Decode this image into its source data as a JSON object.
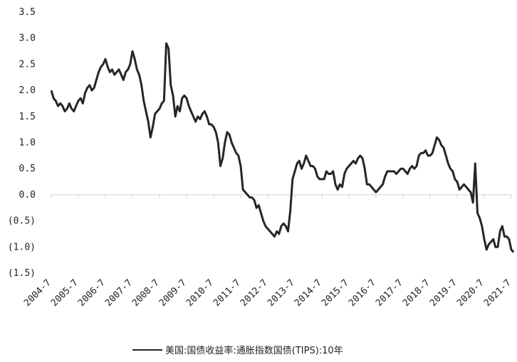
{
  "chart_data": {
    "type": "line",
    "series": [
      {
        "name": "美国:国债收益率:通胀指数国债(TIPS):10年",
        "color": "#262626",
        "values": [
          2.0,
          1.85,
          1.8,
          1.7,
          1.75,
          1.7,
          1.6,
          1.65,
          1.75,
          1.65,
          1.6,
          1.7,
          1.8,
          1.85,
          1.75,
          1.95,
          2.05,
          2.1,
          2.0,
          2.05,
          2.2,
          2.35,
          2.45,
          2.5,
          2.6,
          2.45,
          2.35,
          2.4,
          2.3,
          2.35,
          2.4,
          2.3,
          2.2,
          2.35,
          2.4,
          2.5,
          2.75,
          2.6,
          2.4,
          2.3,
          2.1,
          1.8,
          1.6,
          1.4,
          1.1,
          1.3,
          1.55,
          1.6,
          1.65,
          1.75,
          1.8,
          2.9,
          2.8,
          2.1,
          1.9,
          1.5,
          1.7,
          1.6,
          1.85,
          1.9,
          1.85,
          1.7,
          1.6,
          1.5,
          1.4,
          1.5,
          1.45,
          1.55,
          1.6,
          1.5,
          1.35,
          1.35,
          1.3,
          1.2,
          1.0,
          0.55,
          0.7,
          1.0,
          1.2,
          1.15,
          1.0,
          0.9,
          0.8,
          0.75,
          0.55,
          0.1,
          0.05,
          0.0,
          -0.05,
          -0.05,
          -0.1,
          -0.25,
          -0.2,
          -0.35,
          -0.5,
          -0.6,
          -0.65,
          -0.7,
          -0.75,
          -0.8,
          -0.7,
          -0.75,
          -0.6,
          -0.55,
          -0.6,
          -0.7,
          -0.3,
          0.3,
          0.45,
          0.6,
          0.65,
          0.5,
          0.6,
          0.75,
          0.65,
          0.55,
          0.55,
          0.5,
          0.35,
          0.3,
          0.3,
          0.3,
          0.45,
          0.4,
          0.4,
          0.45,
          0.2,
          0.1,
          0.2,
          0.15,
          0.4,
          0.5,
          0.55,
          0.6,
          0.65,
          0.6,
          0.7,
          0.75,
          0.7,
          0.5,
          0.2,
          0.2,
          0.15,
          0.1,
          0.05,
          0.1,
          0.15,
          0.2,
          0.35,
          0.45,
          0.45,
          0.45,
          0.45,
          0.4,
          0.45,
          0.5,
          0.5,
          0.45,
          0.4,
          0.5,
          0.55,
          0.5,
          0.55,
          0.75,
          0.8,
          0.8,
          0.85,
          0.75,
          0.75,
          0.8,
          0.95,
          1.1,
          1.05,
          0.95,
          0.9,
          0.75,
          0.6,
          0.5,
          0.45,
          0.3,
          0.25,
          0.1,
          0.15,
          0.2,
          0.15,
          0.1,
          0.05,
          -0.15,
          0.6,
          -0.35,
          -0.45,
          -0.6,
          -0.85,
          -1.05,
          -0.95,
          -0.9,
          -0.85,
          -1.0,
          -1.0,
          -0.7,
          -0.6,
          -0.8,
          -0.8,
          -0.85,
          -1.05,
          -1.1
        ]
      }
    ],
    "x": [
      "2004-7",
      "2004-8",
      "2004-9",
      "2004-10",
      "2004-11",
      "2004-12",
      "2005-1",
      "2005-2",
      "2005-3",
      "2005-4",
      "2005-5",
      "2005-6",
      "2005-7",
      "2005-8",
      "2005-9",
      "2005-10",
      "2005-11",
      "2005-12",
      "2006-1",
      "2006-2",
      "2006-3",
      "2006-4",
      "2006-5",
      "2006-6",
      "2006-7",
      "2006-8",
      "2006-9",
      "2006-10",
      "2006-11",
      "2006-12",
      "2007-1",
      "2007-2",
      "2007-3",
      "2007-4",
      "2007-5",
      "2007-6",
      "2007-7",
      "2007-8",
      "2007-9",
      "2007-10",
      "2007-11",
      "2007-12",
      "2008-1",
      "2008-2",
      "2008-3",
      "2008-4",
      "2008-5",
      "2008-6",
      "2008-7",
      "2008-8",
      "2008-9",
      "2008-10",
      "2008-11",
      "2008-12",
      "2009-1",
      "2009-2",
      "2009-3",
      "2009-4",
      "2009-5",
      "2009-6",
      "2009-7",
      "2009-8",
      "2009-9",
      "2009-10",
      "2009-11",
      "2009-12",
      "2010-1",
      "2010-2",
      "2010-3",
      "2010-4",
      "2010-5",
      "2010-6",
      "2010-7",
      "2010-8",
      "2010-9",
      "2010-10",
      "2010-11",
      "2010-12",
      "2011-1",
      "2011-2",
      "2011-3",
      "2011-4",
      "2011-5",
      "2011-6",
      "2011-7",
      "2011-8",
      "2011-9",
      "2011-10",
      "2011-11",
      "2011-12",
      "2012-1",
      "2012-2",
      "2012-3",
      "2012-4",
      "2012-5",
      "2012-6",
      "2012-7",
      "2012-8",
      "2012-9",
      "2012-10",
      "2012-11",
      "2012-12",
      "2013-1",
      "2013-2",
      "2013-3",
      "2013-4",
      "2013-5",
      "2013-6",
      "2013-7",
      "2013-8",
      "2013-9",
      "2013-10",
      "2013-11",
      "2013-12",
      "2014-1",
      "2014-2",
      "2014-3",
      "2014-4",
      "2014-5",
      "2014-6",
      "2014-7",
      "2014-8",
      "2014-9",
      "2014-10",
      "2014-11",
      "2014-12",
      "2015-1",
      "2015-2",
      "2015-3",
      "2015-4",
      "2015-5",
      "2015-6",
      "2015-7",
      "2015-8",
      "2015-9",
      "2015-10",
      "2015-11",
      "2015-12",
      "2016-1",
      "2016-2",
      "2016-3",
      "2016-4",
      "2016-5",
      "2016-6",
      "2016-7",
      "2016-8",
      "2016-9",
      "2016-10",
      "2016-11",
      "2016-12",
      "2017-1",
      "2017-2",
      "2017-3",
      "2017-4",
      "2017-5",
      "2017-6",
      "2017-7",
      "2017-8",
      "2017-9",
      "2017-10",
      "2017-11",
      "2017-12",
      "2018-1",
      "2018-2",
      "2018-3",
      "2018-4",
      "2018-5",
      "2018-6",
      "2018-7",
      "2018-8",
      "2018-9",
      "2018-10",
      "2018-11",
      "2018-12",
      "2019-1",
      "2019-2",
      "2019-3",
      "2019-4",
      "2019-5",
      "2019-6",
      "2019-7",
      "2019-8",
      "2019-9",
      "2019-10",
      "2019-11",
      "2019-12",
      "2020-1",
      "2020-2",
      "2020-3",
      "2020-4",
      "2020-5",
      "2020-6",
      "2020-7",
      "2020-8",
      "2020-9",
      "2020-10",
      "2020-11",
      "2020-12",
      "2021-1",
      "2021-2",
      "2021-3",
      "2021-4",
      "2021-5",
      "2021-6",
      "2021-7",
      "2021-8"
    ],
    "xticks": [
      "2004-7",
      "2005-7",
      "2006-7",
      "2007-7",
      "2008-7",
      "2009-7",
      "2010-7",
      "2011-7",
      "2012-7",
      "2013-7",
      "2014-7",
      "2015-7",
      "2016-7",
      "2017-7",
      "2018-7",
      "2019-7",
      "2020-7",
      "2021-7"
    ],
    "ylim": [
      -1.5,
      3.5
    ],
    "yticks": [
      {
        "value": 3.5,
        "label": "3.5"
      },
      {
        "value": 3,
        "label": "3.0"
      },
      {
        "value": 2.5,
        "label": "2.5"
      },
      {
        "value": 2,
        "label": "2.0"
      },
      {
        "value": 1.5,
        "label": "1.5"
      },
      {
        "value": 1,
        "label": "1.0"
      },
      {
        "value": 0.5,
        "label": "0.5"
      },
      {
        "value": 0,
        "label": "0.0"
      },
      {
        "value": -0.5,
        "label": "(0.5)"
      },
      {
        "value": -1,
        "label": "(1.0)"
      },
      {
        "value": -1.5,
        "label": "(1.5)"
      }
    ],
    "legend": "bottom"
  }
}
